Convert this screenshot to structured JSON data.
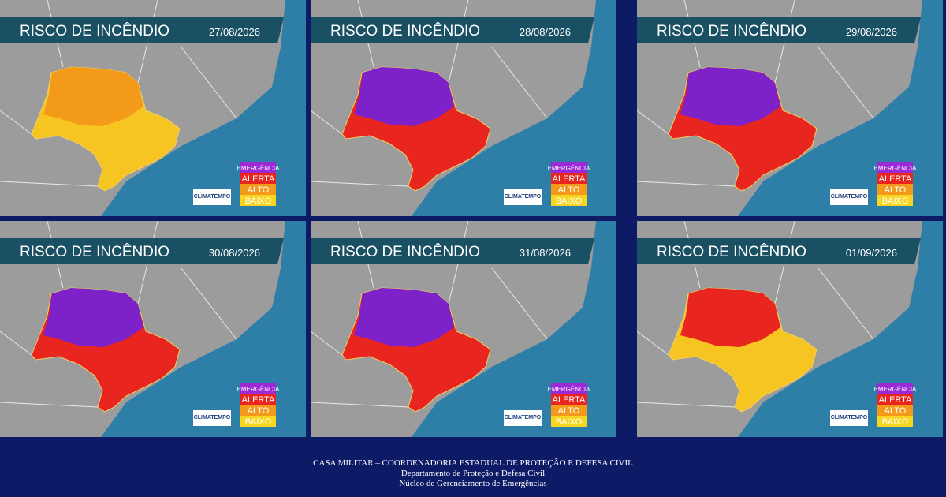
{
  "panels": [
    {
      "title": "RISCO DE INCÊNDIO",
      "date": "27/08/2026"
    },
    {
      "title": "RISCO DE INCÊNDIO",
      "date": "28/08/2026"
    },
    {
      "title": "RISCO DE INCÊNDIO",
      "date": "29/08/2026"
    },
    {
      "title": "RISCO DE INCÊNDIO",
      "date": "30/08/2026"
    },
    {
      "title": "RISCO DE INCÊNDIO",
      "date": "31/08/2026"
    },
    {
      "title": "RISCO DE INCÊNDIO",
      "date": "01/09/2026"
    }
  ],
  "legend": [
    "EMERGÊNCIA",
    "ALERTA",
    "ALTO",
    "BAIXO"
  ],
  "logo": "CLIMATEMPO",
  "footer": {
    "line1": "CASA MILITAR – COORDENADORIA ESTADUAL DE PROTEÇÃO E DEFESA CIVIL",
    "line2": "Departamento de Proteção e Defesa Civil",
    "line3": "Núcleo de Gerenciamento de Emergências"
  }
}
